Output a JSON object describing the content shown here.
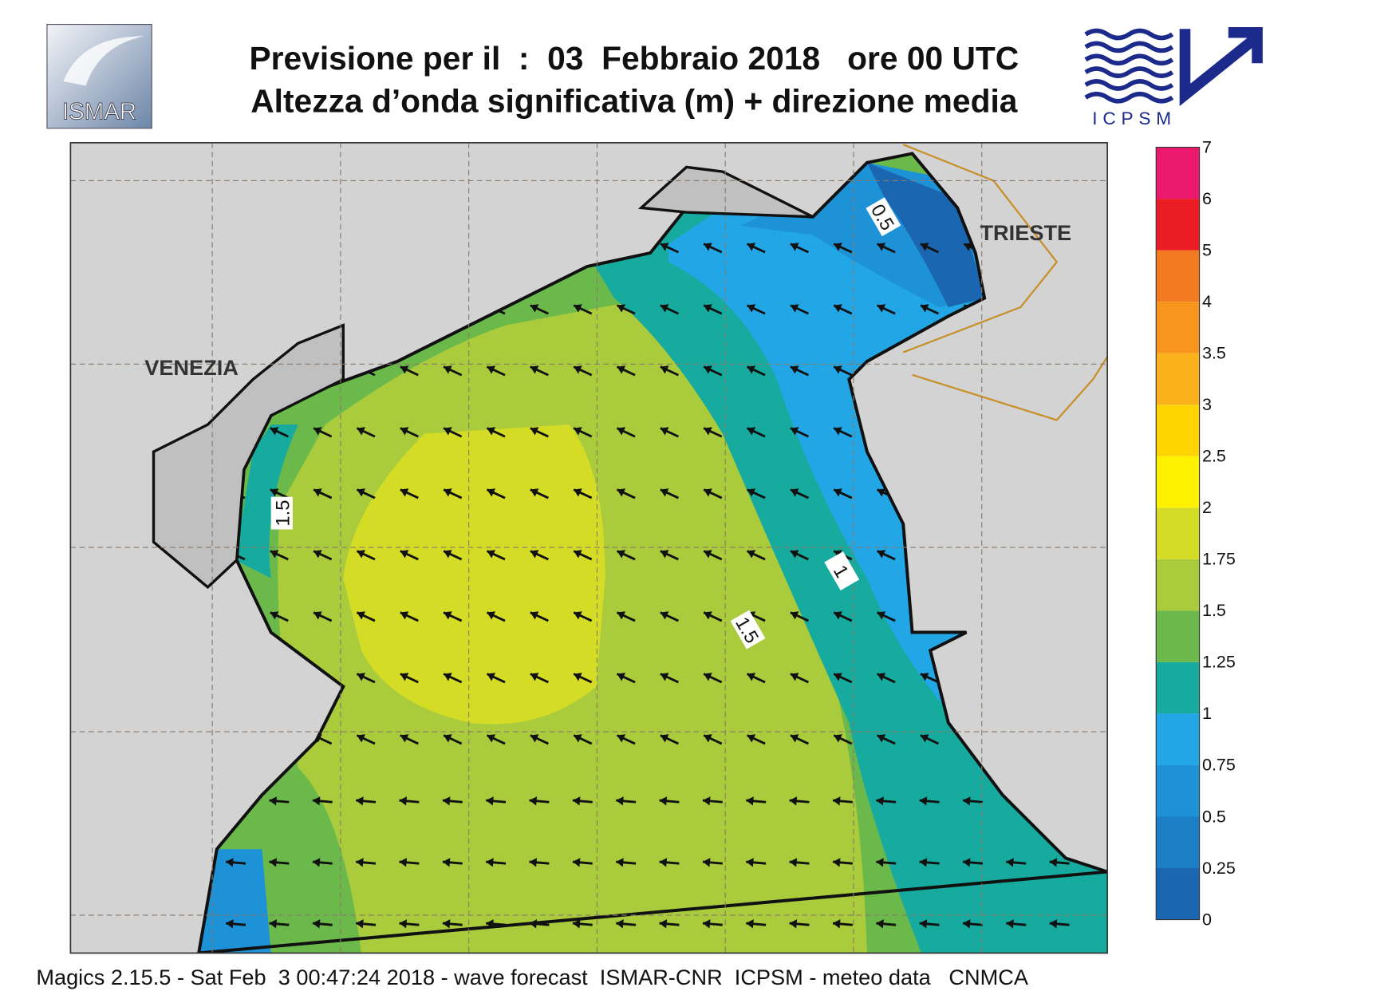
{
  "header": {
    "title_line1": "Previsione per il  :  03  Febbraio 2018   ore 00 UTC",
    "title_line2": "Altezza d’onda significativa (m) + direzione media"
  },
  "logos": {
    "left": "ISMAR",
    "right": "ICPSM"
  },
  "map": {
    "place_labels": [
      "VENEZIA",
      "TRIESTE"
    ],
    "contour_labels": [
      "0.5",
      "1",
      "1.5",
      "1.5"
    ]
  },
  "legend": {
    "ticks": [
      "0",
      "0.25",
      "0.5",
      "0.75",
      "1",
      "1.25",
      "1.5",
      "1.75",
      "2",
      "2.5",
      "3",
      "3.5",
      "4",
      "5",
      "6",
      "7"
    ],
    "colors": [
      "#1a66b0",
      "#1c7ec4",
      "#1e92d6",
      "#22a6e6",
      "#16ab9e",
      "#6cb94b",
      "#a9cb3c",
      "#d5dc25",
      "#fff200",
      "#ffd400",
      "#fbb11c",
      "#f7951d",
      "#f47a22",
      "#ec1c24",
      "#ec1a6e"
    ]
  },
  "footer": "Magics 2.15.5 - Sat Feb  3 00:47:24 2018 - wave forecast  ISMAR-CNR  ICPSM - meteo data   CNMCA"
}
